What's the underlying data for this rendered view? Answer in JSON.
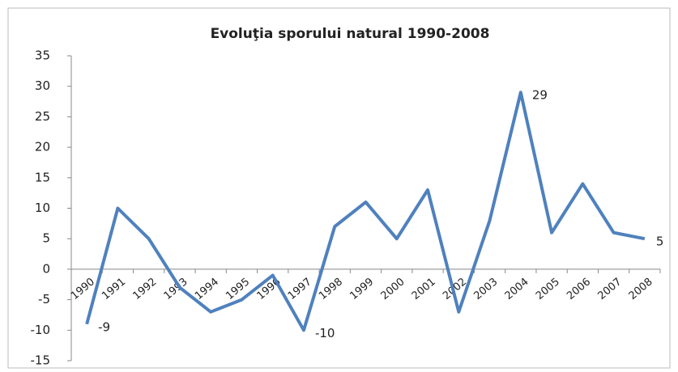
{
  "chart_data": {
    "type": "line",
    "title": "Evoluţia sporului natural 1990-2008",
    "categories": [
      "1990",
      "1991",
      "1992",
      "1993",
      "1994",
      "1995",
      "1996",
      "1997",
      "1998",
      "1999",
      "2000",
      "2001",
      "2002",
      "2003",
      "2004",
      "2005",
      "2006",
      "2007",
      "2008"
    ],
    "values": [
      -9,
      10,
      5,
      -3,
      -7,
      -5,
      -1,
      -10,
      7,
      11,
      5,
      13,
      -7,
      8,
      29,
      6,
      14,
      6,
      5
    ],
    "value_labels": [
      "-9",
      null,
      null,
      null,
      null,
      null,
      null,
      "-10",
      null,
      null,
      null,
      null,
      null,
      null,
      "29",
      null,
      null,
      null,
      "5"
    ],
    "color": "#4f81bd",
    "ylim": [
      -15,
      35
    ],
    "yticks": [
      -15,
      -10,
      -5,
      0,
      5,
      10,
      15,
      20,
      25,
      30,
      35
    ],
    "grid": false
  }
}
